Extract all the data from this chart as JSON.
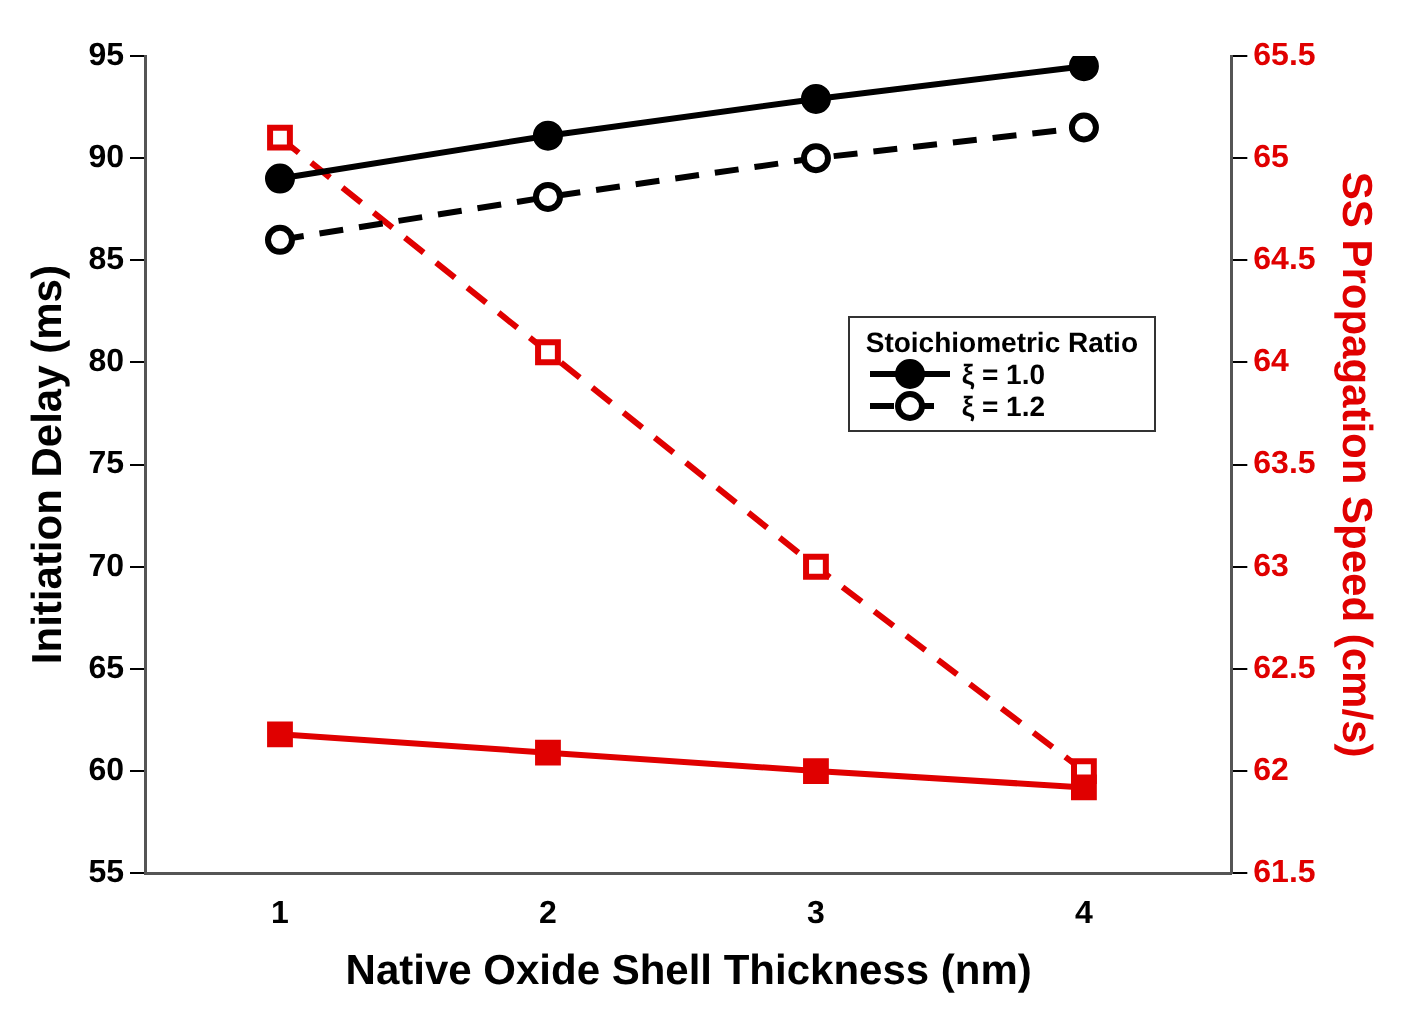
{
  "chart_data": {
    "type": "line",
    "xlabel": "Native Oxide Shell Thickness (nm)",
    "ylabel": "Initiation Delay (ms)",
    "y2label": "SS Propagation Speed (cm/s)",
    "legend_title": "Stoichiometric Ratio",
    "x": [
      1,
      2,
      3,
      4
    ],
    "xlim": [
      0.5,
      4.55
    ],
    "xticks": [
      1,
      2,
      3,
      4
    ],
    "ylim": [
      55,
      95
    ],
    "yticks": [
      55,
      60,
      65,
      70,
      75,
      80,
      85,
      90,
      95
    ],
    "y2lim": [
      61.5,
      65.5
    ],
    "y2ticks": [
      61.5,
      62,
      62.5,
      63,
      63.5,
      64,
      64.5,
      65,
      65.5
    ],
    "legend": "right",
    "grid": false,
    "series": [
      {
        "name": "ξ = 1.0",
        "color": "#000000",
        "values": [
          89,
          91.1,
          92.9,
          94.5
        ],
        "marker": "circle",
        "line_style": "solid"
      },
      {
        "name": "ξ = 1.2",
        "color": "#000000",
        "values": [
          86,
          88.1,
          90,
          91.5
        ],
        "marker": "circle",
        "line_style": "dashed"
      },
      {
        "color": "#e00000",
        "values": [
          62.18,
          62.09,
          62.0,
          61.92
        ],
        "axis": "y2",
        "marker": "square",
        "line_style": "solid"
      },
      {
        "color": "#e00000",
        "values": [
          65.1,
          64.05,
          63.0,
          62.0
        ],
        "axis": "y2",
        "marker": "square",
        "line_style": "dashed"
      }
    ]
  }
}
